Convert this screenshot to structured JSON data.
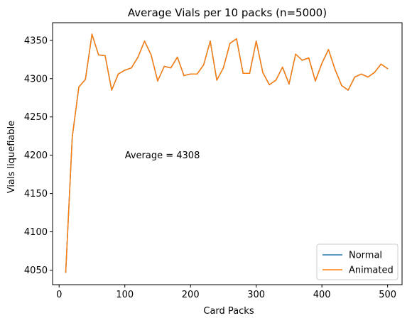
{
  "chart_data": {
    "type": "line",
    "title": "Average Vials per 10 packs (n=5000)",
    "xlabel": "Card Packs",
    "ylabel": "Vials liquefiable",
    "xlim": [
      -10,
      522
    ],
    "ylim": [
      4031,
      4373
    ],
    "xticks": [
      "0",
      "100",
      "200",
      "300",
      "400",
      "500"
    ],
    "yticks": [
      "4050",
      "4100",
      "4150",
      "4200",
      "4250",
      "4300",
      "4350"
    ],
    "grid": false,
    "legend_position": "lower right",
    "annotation": {
      "text": "Average = 4308",
      "x": 100,
      "y": 4200
    },
    "x": [
      10,
      20,
      30,
      40,
      50,
      60,
      70,
      80,
      90,
      100,
      110,
      120,
      130,
      140,
      150,
      160,
      170,
      180,
      190,
      200,
      210,
      220,
      230,
      240,
      250,
      260,
      270,
      280,
      290,
      300,
      310,
      320,
      330,
      340,
      350,
      360,
      370,
      380,
      390,
      400,
      410,
      420,
      430,
      440,
      450,
      460,
      470,
      480,
      490,
      500
    ],
    "series": [
      {
        "name": "Normal",
        "color": "#1f77b4",
        "values": [
          4047,
          4224,
          4289,
          4299,
          4358,
          4331,
          4330,
          4285,
          4306,
          4311,
          4314,
          4328,
          4349,
          4331,
          4297,
          4316,
          4314,
          4328,
          4304,
          4306,
          4306,
          4318,
          4349,
          4298,
          4314,
          4346,
          4352,
          4307,
          4307,
          4349,
          4308,
          4292,
          4298,
          4315,
          4293,
          4332,
          4324,
          4327,
          4297,
          4320,
          4338,
          4312,
          4291,
          4285,
          4302,
          4306,
          4302,
          4308,
          4319,
          4313
        ]
      },
      {
        "name": "Animated",
        "color": "#ff7f0e",
        "values": [
          4047,
          4224,
          4289,
          4299,
          4358,
          4331,
          4330,
          4285,
          4306,
          4311,
          4314,
          4328,
          4349,
          4331,
          4297,
          4316,
          4314,
          4328,
          4304,
          4306,
          4306,
          4318,
          4349,
          4298,
          4314,
          4346,
          4352,
          4307,
          4307,
          4349,
          4308,
          4292,
          4298,
          4315,
          4293,
          4332,
          4324,
          4327,
          4297,
          4320,
          4338,
          4312,
          4291,
          4285,
          4302,
          4306,
          4302,
          4308,
          4319,
          4313
        ]
      }
    ]
  }
}
